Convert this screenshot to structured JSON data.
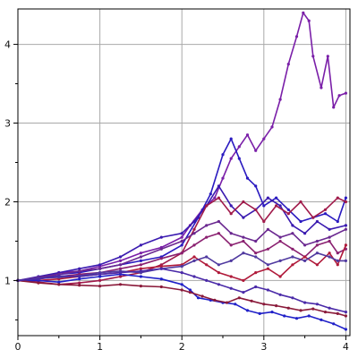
{
  "chart_data": {
    "type": "line",
    "title": "",
    "xlabel": "",
    "ylabel": "",
    "xlim": [
      0,
      4.05
    ],
    "ylim": [
      0.3,
      4.45
    ],
    "grid": true,
    "legend": "none",
    "x_ticks": [
      0,
      1,
      2,
      3,
      4
    ],
    "x_tick_labels": [
      "0",
      "1",
      "2",
      "3",
      "4"
    ],
    "y_ticks": [
      1,
      2,
      3,
      4
    ],
    "y_tick_labels": [
      "1",
      "2",
      "3",
      "4"
    ],
    "x_minor_step": 0.5,
    "y_minor_step": 0.5,
    "series": [
      {
        "color": "#7a1fa8",
        "points": [
          [
            0,
            1
          ],
          [
            0.25,
            1.03
          ],
          [
            0.5,
            1.1
          ],
          [
            0.75,
            1.12
          ],
          [
            1,
            1.18
          ],
          [
            1.25,
            1.25
          ],
          [
            1.5,
            1.35
          ],
          [
            1.75,
            1.42
          ],
          [
            2,
            1.55
          ],
          [
            2.1,
            1.7
          ],
          [
            2.25,
            1.9
          ],
          [
            2.4,
            2.05
          ],
          [
            2.5,
            2.3
          ],
          [
            2.6,
            2.55
          ],
          [
            2.7,
            2.7
          ],
          [
            2.8,
            2.85
          ],
          [
            2.9,
            2.65
          ],
          [
            3,
            2.8
          ],
          [
            3.1,
            2.95
          ],
          [
            3.2,
            3.3
          ],
          [
            3.3,
            3.75
          ],
          [
            3.4,
            4.1
          ],
          [
            3.48,
            4.4
          ],
          [
            3.55,
            4.3
          ],
          [
            3.6,
            3.85
          ],
          [
            3.7,
            3.45
          ],
          [
            3.78,
            3.85
          ],
          [
            3.85,
            3.2
          ],
          [
            3.92,
            3.35
          ],
          [
            4.0,
            3.38
          ]
        ]
      },
      {
        "color": "#2a1ac0",
        "points": [
          [
            0,
            1
          ],
          [
            0.25,
            1.02
          ],
          [
            0.5,
            1.08
          ],
          [
            0.75,
            1.1
          ],
          [
            1,
            1.15
          ],
          [
            1.25,
            1.2
          ],
          [
            1.5,
            1.25
          ],
          [
            1.75,
            1.3
          ],
          [
            2,
            1.45
          ],
          [
            2.2,
            1.8
          ],
          [
            2.35,
            2.1
          ],
          [
            2.5,
            2.6
          ],
          [
            2.6,
            2.8
          ],
          [
            2.7,
            2.55
          ],
          [
            2.8,
            2.3
          ],
          [
            2.9,
            2.2
          ],
          [
            3,
            1.95
          ],
          [
            3.15,
            2.05
          ],
          [
            3.3,
            1.9
          ],
          [
            3.45,
            1.75
          ],
          [
            3.6,
            1.8
          ],
          [
            3.75,
            1.85
          ],
          [
            3.9,
            1.75
          ],
          [
            4.0,
            2.05
          ]
        ]
      },
      {
        "color": "#3a1ab0",
        "points": [
          [
            0,
            1
          ],
          [
            0.25,
            1.05
          ],
          [
            0.5,
            1.1
          ],
          [
            0.75,
            1.15
          ],
          [
            1,
            1.2
          ],
          [
            1.25,
            1.3
          ],
          [
            1.5,
            1.45
          ],
          [
            1.75,
            1.55
          ],
          [
            2,
            1.6
          ],
          [
            2.15,
            1.75
          ],
          [
            2.3,
            1.95
          ],
          [
            2.45,
            2.2
          ],
          [
            2.6,
            1.95
          ],
          [
            2.75,
            1.8
          ],
          [
            2.9,
            1.9
          ],
          [
            3.05,
            2.05
          ],
          [
            3.2,
            1.95
          ],
          [
            3.35,
            1.7
          ],
          [
            3.5,
            1.6
          ],
          [
            3.65,
            1.75
          ],
          [
            3.8,
            1.65
          ],
          [
            4.0,
            1.7
          ]
        ]
      },
      {
        "color": "#a01a4a",
        "points": [
          [
            0,
            1
          ],
          [
            0.25,
            0.98
          ],
          [
            0.5,
            0.95
          ],
          [
            0.75,
            0.97
          ],
          [
            1,
            1.0
          ],
          [
            1.25,
            1.05
          ],
          [
            1.5,
            1.1
          ],
          [
            1.75,
            1.2
          ],
          [
            2,
            1.35
          ],
          [
            2.15,
            1.65
          ],
          [
            2.3,
            1.95
          ],
          [
            2.45,
            2.05
          ],
          [
            2.6,
            1.85
          ],
          [
            2.75,
            2.0
          ],
          [
            2.9,
            1.9
          ],
          [
            3.0,
            1.75
          ],
          [
            3.15,
            1.95
          ],
          [
            3.3,
            1.85
          ],
          [
            3.45,
            2.0
          ],
          [
            3.6,
            1.8
          ],
          [
            3.75,
            1.9
          ],
          [
            3.9,
            2.05
          ],
          [
            4.0,
            2.0
          ]
        ]
      },
      {
        "color": "#6a2890",
        "points": [
          [
            0,
            1
          ],
          [
            0.25,
            1.04
          ],
          [
            0.5,
            1.08
          ],
          [
            0.75,
            1.12
          ],
          [
            1,
            1.15
          ],
          [
            1.25,
            1.2
          ],
          [
            1.5,
            1.3
          ],
          [
            1.75,
            1.4
          ],
          [
            2,
            1.5
          ],
          [
            2.15,
            1.6
          ],
          [
            2.3,
            1.7
          ],
          [
            2.45,
            1.75
          ],
          [
            2.6,
            1.6
          ],
          [
            2.75,
            1.55
          ],
          [
            2.9,
            1.5
          ],
          [
            3.05,
            1.65
          ],
          [
            3.2,
            1.55
          ],
          [
            3.35,
            1.6
          ],
          [
            3.5,
            1.45
          ],
          [
            3.65,
            1.5
          ],
          [
            3.8,
            1.55
          ],
          [
            4.0,
            1.65
          ]
        ]
      },
      {
        "color": "#8a2070",
        "points": [
          [
            0,
            1
          ],
          [
            0.25,
            1.02
          ],
          [
            0.5,
            1.05
          ],
          [
            0.75,
            1.08
          ],
          [
            1,
            1.1
          ],
          [
            1.25,
            1.15
          ],
          [
            1.5,
            1.2
          ],
          [
            1.75,
            1.28
          ],
          [
            2,
            1.35
          ],
          [
            2.15,
            1.45
          ],
          [
            2.3,
            1.55
          ],
          [
            2.45,
            1.6
          ],
          [
            2.6,
            1.45
          ],
          [
            2.75,
            1.5
          ],
          [
            2.9,
            1.35
          ],
          [
            3.05,
            1.4
          ],
          [
            3.2,
            1.5
          ],
          [
            3.35,
            1.4
          ],
          [
            3.5,
            1.3
          ],
          [
            3.65,
            1.45
          ],
          [
            3.8,
            1.5
          ],
          [
            3.9,
            1.35
          ],
          [
            4.0,
            1.4
          ]
        ]
      },
      {
        "color": "#b01a3a",
        "points": [
          [
            0,
            1
          ],
          [
            0.25,
            1.0
          ],
          [
            0.5,
            1.02
          ],
          [
            0.75,
            1.05
          ],
          [
            1,
            1.08
          ],
          [
            1.25,
            1.1
          ],
          [
            1.5,
            1.15
          ],
          [
            1.75,
            1.18
          ],
          [
            2,
            1.2
          ],
          [
            2.15,
            1.3
          ],
          [
            2.3,
            1.2
          ],
          [
            2.45,
            1.1
          ],
          [
            2.6,
            1.05
          ],
          [
            2.75,
            1.0
          ],
          [
            2.9,
            1.1
          ],
          [
            3.05,
            1.15
          ],
          [
            3.2,
            1.05
          ],
          [
            3.35,
            1.2
          ],
          [
            3.5,
            1.3
          ],
          [
            3.65,
            1.2
          ],
          [
            3.8,
            1.35
          ],
          [
            3.9,
            1.2
          ],
          [
            4.0,
            1.45
          ]
        ]
      },
      {
        "color": "#503aa0",
        "points": [
          [
            0,
            1
          ],
          [
            0.25,
            1.03
          ],
          [
            0.5,
            1.04
          ],
          [
            0.75,
            1.06
          ],
          [
            1,
            1.1
          ],
          [
            1.25,
            1.12
          ],
          [
            1.5,
            1.1
          ],
          [
            1.75,
            1.15
          ],
          [
            2,
            1.18
          ],
          [
            2.15,
            1.25
          ],
          [
            2.3,
            1.3
          ],
          [
            2.45,
            1.2
          ],
          [
            2.6,
            1.25
          ],
          [
            2.75,
            1.35
          ],
          [
            2.9,
            1.3
          ],
          [
            3.05,
            1.2
          ],
          [
            3.2,
            1.25
          ],
          [
            3.35,
            1.3
          ],
          [
            3.5,
            1.25
          ],
          [
            3.65,
            1.35
          ],
          [
            3.8,
            1.3
          ],
          [
            3.9,
            1.25
          ],
          [
            4.0,
            1.25
          ]
        ]
      },
      {
        "color": "#2020c8",
        "points": [
          [
            0,
            1
          ],
          [
            0.25,
            1.0
          ],
          [
            0.5,
            0.98
          ],
          [
            0.75,
            1.02
          ],
          [
            1,
            1.05
          ],
          [
            1.25,
            1.08
          ],
          [
            1.5,
            1.05
          ],
          [
            1.75,
            1.02
          ],
          [
            2,
            0.95
          ],
          [
            2.1,
            0.88
          ],
          [
            2.2,
            0.78
          ],
          [
            2.35,
            0.75
          ],
          [
            2.5,
            0.72
          ],
          [
            2.65,
            0.7
          ],
          [
            2.8,
            0.62
          ],
          [
            2.95,
            0.58
          ],
          [
            3.1,
            0.6
          ],
          [
            3.25,
            0.55
          ],
          [
            3.4,
            0.52
          ],
          [
            3.55,
            0.55
          ],
          [
            3.7,
            0.5
          ],
          [
            3.85,
            0.45
          ],
          [
            4.0,
            0.38
          ]
        ]
      },
      {
        "color": "#8a1a3a",
        "points": [
          [
            0,
            1
          ],
          [
            0.25,
            0.97
          ],
          [
            0.5,
            0.95
          ],
          [
            0.75,
            0.94
          ],
          [
            1,
            0.93
          ],
          [
            1.25,
            0.95
          ],
          [
            1.5,
            0.93
          ],
          [
            1.75,
            0.92
          ],
          [
            2,
            0.88
          ],
          [
            2.1,
            0.85
          ],
          [
            2.25,
            0.8
          ],
          [
            2.4,
            0.75
          ],
          [
            2.55,
            0.72
          ],
          [
            2.7,
            0.78
          ],
          [
            2.85,
            0.74
          ],
          [
            3.0,
            0.7
          ],
          [
            3.15,
            0.68
          ],
          [
            3.3,
            0.65
          ],
          [
            3.45,
            0.62
          ],
          [
            3.6,
            0.64
          ],
          [
            3.75,
            0.6
          ],
          [
            3.9,
            0.58
          ],
          [
            4.0,
            0.55
          ]
        ]
      },
      {
        "color": "#4a2aa8",
        "points": [
          [
            0,
            1
          ],
          [
            0.25,
            1.02
          ],
          [
            0.5,
            1.06
          ],
          [
            0.75,
            1.05
          ],
          [
            1,
            1.08
          ],
          [
            1.25,
            1.1
          ],
          [
            1.5,
            1.12
          ],
          [
            1.75,
            1.15
          ],
          [
            2,
            1.1
          ],
          [
            2.15,
            1.05
          ],
          [
            2.3,
            1.0
          ],
          [
            2.45,
            0.95
          ],
          [
            2.6,
            0.9
          ],
          [
            2.75,
            0.85
          ],
          [
            2.9,
            0.92
          ],
          [
            3.05,
            0.88
          ],
          [
            3.2,
            0.82
          ],
          [
            3.35,
            0.78
          ],
          [
            3.5,
            0.72
          ],
          [
            3.65,
            0.7
          ],
          [
            3.8,
            0.65
          ],
          [
            4.0,
            0.6
          ]
        ]
      }
    ]
  }
}
